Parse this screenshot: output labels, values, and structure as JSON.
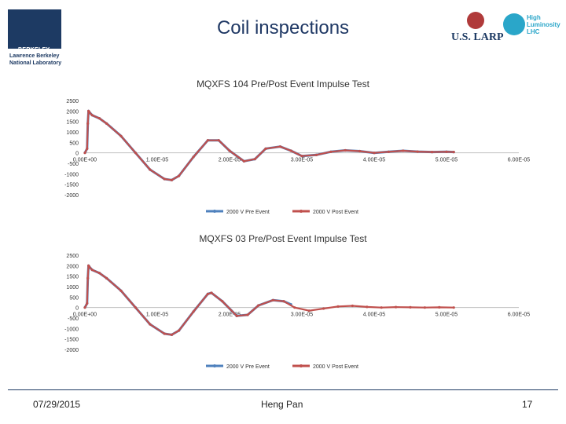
{
  "header": {
    "title": "Coil inspections",
    "logo_left_main": "BERKELEY LAB",
    "logo_left_sub1": "Lawrence Berkeley",
    "logo_left_sub2": "National Laboratory",
    "logo_right1": "U.S. LARP",
    "logo_right2_l1": "High",
    "logo_right2_l2": "Luminosity",
    "logo_right2_l3": "LHC"
  },
  "footer": {
    "date": "07/29/2015",
    "author": "Heng Pan",
    "page": "17"
  },
  "colors": {
    "pre_event": "#4f81bd",
    "post_event": "#c0504d",
    "axis": "#bfbfbf",
    "grid": "#e6e6e6"
  },
  "chart_data": [
    {
      "type": "line",
      "title": "MQXFS 104 Pre/Post Event Impulse Test",
      "yticks": [
        "2500",
        "2000",
        "1500",
        "1000",
        "500",
        "0",
        "-500",
        "-1000",
        "-1500",
        "-2000"
      ],
      "ytick_values": [
        2500,
        2000,
        1500,
        1000,
        500,
        0,
        -500,
        -1000,
        -1500,
        -2000
      ],
      "xticks": [
        "0.00E+00",
        "1.00E-05",
        "2.00E-05",
        "3.00E-05",
        "4.00E-05",
        "5.00E-05",
        "6.00E-05"
      ],
      "xtick_values": [
        0,
        1e-05,
        2e-05,
        3e-05,
        4e-05,
        5e-05,
        6e-05
      ],
      "ylim": [
        -2000,
        2500
      ],
      "xlim": [
        0,
        6e-05
      ],
      "legend": "bottom",
      "series": [
        {
          "name": "2000 V Pre Event",
          "x": [
            0,
            3e-07,
            4e-07,
            5e-07,
            6e-07,
            1e-06,
            2e-06,
            3e-06,
            5e-06,
            7e-06,
            9e-06,
            1.1e-05,
            1.2e-05,
            1.3e-05,
            1.5e-05,
            1.7e-05,
            1.85e-05,
            2e-05,
            2.2e-05,
            2.35e-05,
            2.5e-05,
            2.7e-05,
            2.85e-05,
            3e-05,
            3.2e-05,
            3.4e-05,
            3.6e-05,
            3.8e-05,
            4e-05,
            4.2e-05,
            4.4e-05,
            4.6e-05,
            4.8e-05,
            5e-05,
            5.1e-05
          ],
          "y": [
            0,
            200,
            1400,
            2000,
            1950,
            1800,
            1650,
            1400,
            800,
            0,
            -800,
            -1250,
            -1300,
            -1100,
            -200,
            600,
            600,
            100,
            -400,
            -300,
            200,
            300,
            100,
            -150,
            -100,
            50,
            120,
            80,
            0,
            50,
            100,
            60,
            40,
            50,
            40
          ]
        },
        {
          "name": "2000 V Post Event",
          "x": [
            0,
            3e-07,
            4e-07,
            5e-07,
            6e-07,
            1e-06,
            2e-06,
            3e-06,
            5e-06,
            7e-06,
            9e-06,
            1.1e-05,
            1.2e-05,
            1.3e-05,
            1.5e-05,
            1.7e-05,
            1.85e-05,
            2e-05,
            2.2e-05,
            2.35e-05,
            2.5e-05,
            2.7e-05,
            2.85e-05,
            3e-05,
            3.2e-05,
            3.4e-05,
            3.6e-05,
            3.8e-05,
            4e-05,
            4.2e-05,
            4.4e-05,
            4.6e-05,
            4.8e-05,
            5e-05,
            5.1e-05
          ],
          "y": [
            0,
            200,
            1400,
            2000,
            1950,
            1800,
            1650,
            1400,
            800,
            0,
            -800,
            -1250,
            -1300,
            -1100,
            -200,
            600,
            600,
            100,
            -400,
            -300,
            200,
            300,
            100,
            -150,
            -100,
            50,
            120,
            80,
            0,
            50,
            100,
            60,
            40,
            50,
            40
          ]
        }
      ]
    },
    {
      "type": "line",
      "title": "MQXFS 03 Pre/Post Event Impulse Test",
      "yticks": [
        "2500",
        "2000",
        "1500",
        "1000",
        "500",
        "0",
        "-500",
        "-1000",
        "-1500",
        "-2000"
      ],
      "ytick_values": [
        2500,
        2000,
        1500,
        1000,
        500,
        0,
        -500,
        -1000,
        -1500,
        -2000
      ],
      "xticks": [
        "0.00E+00",
        "1.00E-05",
        "2.00E-05",
        "3.00E-05",
        "4.00E-05",
        "5.00E-05",
        "6.00E-05"
      ],
      "xtick_values": [
        0,
        1e-05,
        2e-05,
        3e-05,
        4e-05,
        5e-05,
        6e-05
      ],
      "ylim": [
        -2000,
        2500
      ],
      "xlim": [
        0,
        6e-05
      ],
      "legend": "bottom",
      "series": [
        {
          "name": "2000 V Pre Event",
          "x": [
            0,
            3e-07,
            4e-07,
            5e-07,
            6e-07,
            1e-06,
            2e-06,
            3e-06,
            5e-06,
            7e-06,
            9e-06,
            1.1e-05,
            1.2e-05,
            1.3e-05,
            1.5e-05,
            1.7e-05,
            1.75e-05,
            1.9e-05,
            2.1e-05,
            2.25e-05,
            2.4e-05,
            2.6e-05,
            2.75e-05,
            2.85e-05
          ],
          "y": [
            0,
            200,
            1400,
            2000,
            1950,
            1800,
            1650,
            1400,
            800,
            0,
            -800,
            -1250,
            -1300,
            -1100,
            -200,
            650,
            700,
            300,
            -400,
            -350,
            100,
            350,
            300,
            150
          ]
        },
        {
          "name": "2000 V Post Event",
          "x": [
            0,
            3e-07,
            4e-07,
            5e-07,
            6e-07,
            1e-06,
            2e-06,
            3e-06,
            5e-06,
            7e-06,
            9e-06,
            1.1e-05,
            1.2e-05,
            1.3e-05,
            1.5e-05,
            1.7e-05,
            1.75e-05,
            1.9e-05,
            2.1e-05,
            2.25e-05,
            2.4e-05,
            2.6e-05,
            2.75e-05,
            2.9e-05,
            3.1e-05,
            3.3e-05,
            3.5e-05,
            3.7e-05,
            3.9e-05,
            4.1e-05,
            4.3e-05,
            4.5e-05,
            4.7e-05,
            4.9e-05,
            5.1e-05
          ],
          "y": [
            0,
            200,
            1400,
            2000,
            1950,
            1800,
            1650,
            1400,
            800,
            0,
            -800,
            -1250,
            -1300,
            -1100,
            -200,
            650,
            700,
            300,
            -400,
            -350,
            100,
            350,
            300,
            0,
            -150,
            -50,
            50,
            80,
            30,
            0,
            20,
            10,
            0,
            10,
            0
          ]
        }
      ]
    }
  ]
}
